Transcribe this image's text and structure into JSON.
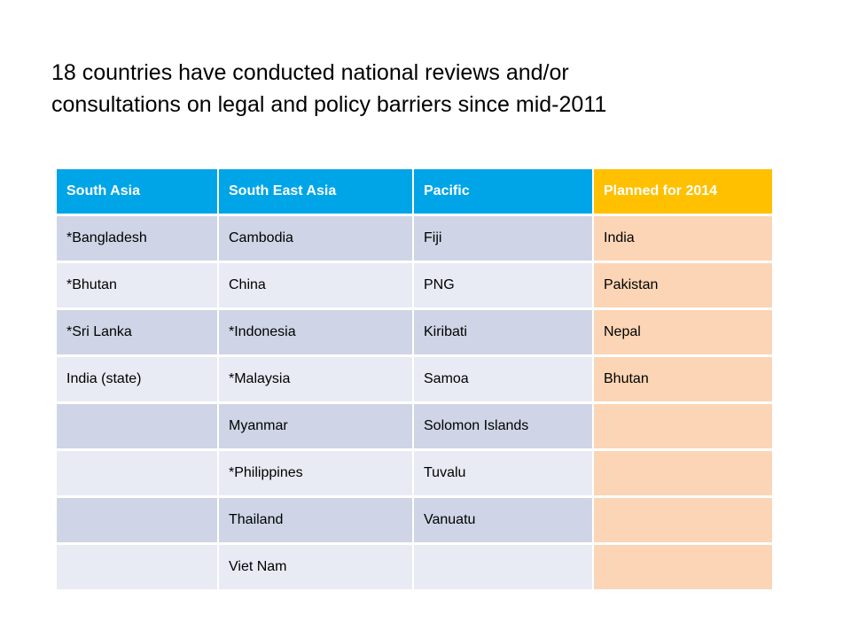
{
  "title": {
    "line1": "18 countries  have conducted national reviews and/or",
    "line2": "consultations on legal and policy barriers since mid-2011"
  },
  "colors": {
    "header": "#00a5e8",
    "planned_header": "#ffc000",
    "row_dark": "#cfd5e6",
    "row_light": "#e8ebf4",
    "planned_column": "#fbd5b5"
  },
  "table": {
    "headers": [
      "South Asia",
      "South East Asia",
      "Pacific",
      "Planned for 2014"
    ],
    "rows": [
      [
        "*Bangladesh",
        "Cambodia",
        "Fiji",
        "India"
      ],
      [
        "*Bhutan",
        "China",
        "PNG",
        "Pakistan"
      ],
      [
        "*Sri Lanka",
        "*Indonesia",
        "Kiribati",
        "Nepal"
      ],
      [
        "India (state)",
        "*Malaysia",
        "Samoa",
        "Bhutan"
      ],
      [
        "",
        "Myanmar",
        "Solomon Islands",
        ""
      ],
      [
        "",
        "*Philippines",
        "Tuvalu",
        ""
      ],
      [
        "",
        "Thailand",
        "Vanuatu",
        ""
      ],
      [
        "",
        "Viet Nam",
        "",
        ""
      ]
    ]
  }
}
